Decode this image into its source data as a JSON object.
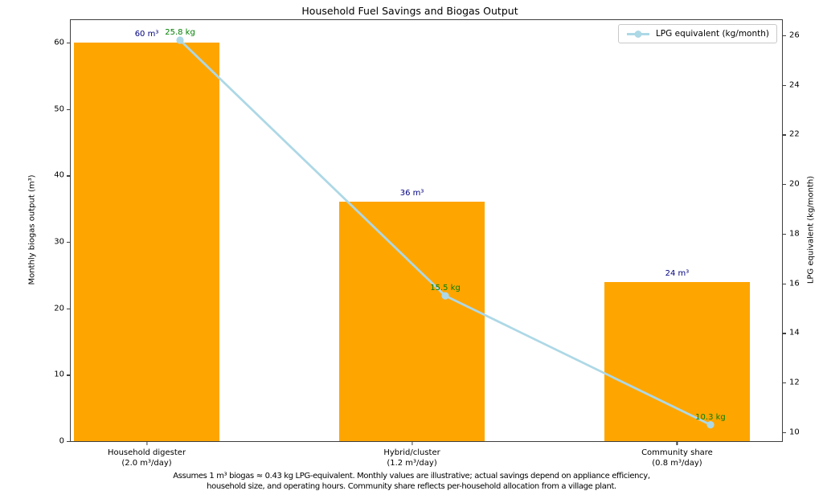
{
  "chart_data": {
    "type": "bar",
    "title": "Household Fuel Savings and Biogas Output",
    "categories": [
      "Household digester\n(2.0 m³/day)",
      "Hybrid/cluster\n(1.2 m³/day)",
      "Community share\n(0.8 m³/day)"
    ],
    "series": [
      {
        "name": "Monthly biogas output (m³)",
        "type": "bar",
        "axis": "left",
        "color": "#FFA500",
        "values": [
          60,
          36,
          24
        ],
        "point_labels": [
          "60 m³",
          "36 m³",
          "24 m³"
        ],
        "label_color": "#000080"
      },
      {
        "name": "LPG equivalent (kg/month)",
        "type": "line",
        "axis": "right",
        "color": "#ADD8E6",
        "marker": "circle",
        "values": [
          25.8,
          15.5,
          10.3
        ],
        "point_labels": [
          "25.8 kg",
          "15.5 kg",
          "10.3 kg"
        ],
        "label_color": "#008000"
      }
    ],
    "axes": {
      "left": {
        "label": "Monthly biogas output (m³)",
        "ticks": [
          0,
          10,
          20,
          30,
          40,
          50,
          60
        ],
        "range": [
          0,
          63.4
        ]
      },
      "right": {
        "label": "LPG equivalent (kg/month)",
        "ticks": [
          10,
          12,
          14,
          16,
          18,
          20,
          22,
          24,
          26
        ],
        "range": [
          9.64,
          26.61
        ]
      }
    },
    "legend": {
      "position": "upper right",
      "entries": [
        "LPG equivalent (kg/month)"
      ]
    },
    "grid": false,
    "footnote": "Assumes 1 m³ biogas ≈ 0.43 kg LPG-equivalent. Monthly values are illustrative; actual savings depend on appliance efficiency,\nhousehold size, and operating hours. Community share reflects per-household allocation from a village plant."
  }
}
